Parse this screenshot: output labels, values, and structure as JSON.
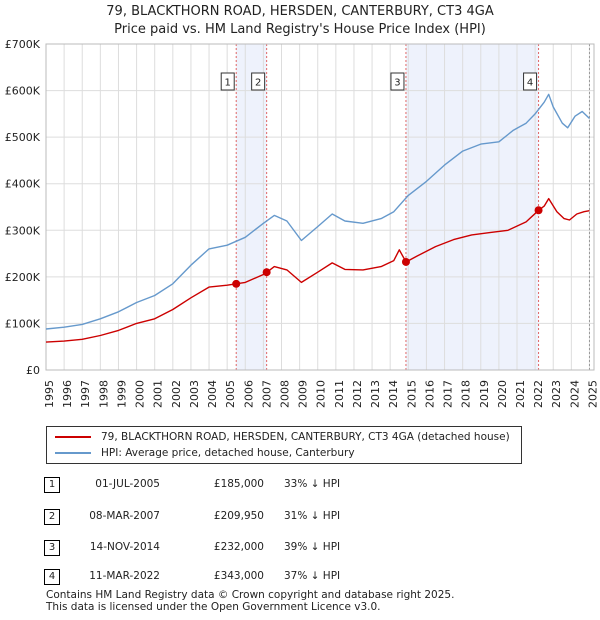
{
  "title": {
    "line1": "79, BLACKTHORN ROAD, HERSDEN, CANTERBURY, CT3 4GA",
    "line2": "Price paid vs. HM Land Registry's House Price Index (HPI)"
  },
  "colors": {
    "property": "#cc0000",
    "hpi": "#6699cc",
    "shade": "#eef2fc",
    "vline": "#e06666",
    "grid": "#dddddd"
  },
  "chart_data": {
    "type": "line",
    "title": "79, BLACKTHORN ROAD, HERSDEN, CANTERBURY, CT3 4GA — Price paid vs. HM Land Registry's House Price Index (HPI)",
    "xlabel": "",
    "ylabel": "",
    "xlim": [
      1995,
      2025.25
    ],
    "ylim": [
      0,
      700000
    ],
    "grid": true,
    "x_ticks": [
      1995,
      1996,
      1997,
      1998,
      1999,
      2000,
      2001,
      2002,
      2003,
      2004,
      2005,
      2006,
      2007,
      2008,
      2009,
      2010,
      2011,
      2012,
      2013,
      2014,
      2015,
      2016,
      2017,
      2018,
      2019,
      2020,
      2021,
      2022,
      2023,
      2024,
      2025
    ],
    "y_ticks": [
      {
        "value": 0,
        "label": "£0"
      },
      {
        "value": 100000,
        "label": "£100K"
      },
      {
        "value": 200000,
        "label": "£200K"
      },
      {
        "value": 300000,
        "label": "£300K"
      },
      {
        "value": 400000,
        "label": "£400K"
      },
      {
        "value": 500000,
        "label": "£500K"
      },
      {
        "value": 600000,
        "label": "£600K"
      },
      {
        "value": 700000,
        "label": "£700K"
      }
    ],
    "series": [
      {
        "name": "HPI: Average price, detached house, Canterbury",
        "color": "#6699cc",
        "points": [
          [
            1995,
            88000
          ],
          [
            1996,
            92000
          ],
          [
            1997,
            98000
          ],
          [
            1998,
            110000
          ],
          [
            1999,
            125000
          ],
          [
            2000,
            145000
          ],
          [
            2001,
            160000
          ],
          [
            2002,
            185000
          ],
          [
            2003,
            225000
          ],
          [
            2004,
            260000
          ],
          [
            2005,
            268000
          ],
          [
            2006,
            285000
          ],
          [
            2007,
            315000
          ],
          [
            2007.6,
            332000
          ],
          [
            2008.3,
            320000
          ],
          [
            2009.1,
            278000
          ],
          [
            2010,
            308000
          ],
          [
            2010.8,
            335000
          ],
          [
            2011.5,
            320000
          ],
          [
            2012.5,
            315000
          ],
          [
            2013.5,
            325000
          ],
          [
            2014.2,
            340000
          ],
          [
            2015,
            375000
          ],
          [
            2016,
            405000
          ],
          [
            2017,
            440000
          ],
          [
            2018,
            470000
          ],
          [
            2019,
            485000
          ],
          [
            2020,
            490000
          ],
          [
            2020.8,
            515000
          ],
          [
            2021.5,
            530000
          ],
          [
            2022,
            550000
          ],
          [
            2022.5,
            575000
          ],
          [
            2022.75,
            592000
          ],
          [
            2023,
            565000
          ],
          [
            2023.5,
            530000
          ],
          [
            2023.8,
            520000
          ],
          [
            2024.2,
            545000
          ],
          [
            2024.6,
            555000
          ],
          [
            2025,
            540000
          ]
        ]
      },
      {
        "name": "79, BLACKTHORN ROAD, HERSDEN, CANTERBURY, CT3 4GA (detached house)",
        "color": "#cc0000",
        "points": [
          [
            1995,
            60000
          ],
          [
            1996,
            62000
          ],
          [
            1997,
            66000
          ],
          [
            1998,
            74000
          ],
          [
            1999,
            85000
          ],
          [
            2000,
            100000
          ],
          [
            2001,
            110000
          ],
          [
            2002,
            130000
          ],
          [
            2003,
            155000
          ],
          [
            2004,
            178000
          ],
          [
            2005,
            182000
          ],
          [
            2005.5,
            185000
          ],
          [
            2006,
            188000
          ],
          [
            2007,
            205000
          ],
          [
            2007.2,
            209950
          ],
          [
            2007.6,
            222000
          ],
          [
            2008.3,
            215000
          ],
          [
            2009.1,
            188000
          ],
          [
            2010,
            210000
          ],
          [
            2010.8,
            230000
          ],
          [
            2011.5,
            216000
          ],
          [
            2012.5,
            215000
          ],
          [
            2013.5,
            222000
          ],
          [
            2014.2,
            235000
          ],
          [
            2014.5,
            258000
          ],
          [
            2014.87,
            232000
          ],
          [
            2015.5,
            245000
          ],
          [
            2016.5,
            265000
          ],
          [
            2017.5,
            280000
          ],
          [
            2018.5,
            290000
          ],
          [
            2019.5,
            295000
          ],
          [
            2020.5,
            300000
          ],
          [
            2021.5,
            318000
          ],
          [
            2022.19,
            343000
          ],
          [
            2022.5,
            352000
          ],
          [
            2022.75,
            368000
          ],
          [
            2023.2,
            340000
          ],
          [
            2023.6,
            325000
          ],
          [
            2023.9,
            322000
          ],
          [
            2024.3,
            335000
          ],
          [
            2024.7,
            340000
          ],
          [
            2025,
            342000
          ]
        ]
      }
    ],
    "annotations": [
      {
        "label": "1",
        "x": 2005.5,
        "y": 185000
      },
      {
        "label": "2",
        "x": 2007.18,
        "y": 209950
      },
      {
        "label": "3",
        "x": 2014.87,
        "y": 232000
      },
      {
        "label": "4",
        "x": 2022.19,
        "y": 343000
      }
    ],
    "shaded_ranges": [
      [
        2005.5,
        2007.18
      ],
      [
        2014.87,
        2022.19
      ]
    ]
  },
  "legend": {
    "property_label": "79, BLACKTHORN ROAD, HERSDEN, CANTERBURY, CT3 4GA (detached house)",
    "hpi_label": "HPI: Average price, detached house, Canterbury"
  },
  "transactions": [
    {
      "num": "1",
      "date": "01-JUL-2005",
      "price": "£185,000",
      "hpi": "33% ↓ HPI"
    },
    {
      "num": "2",
      "date": "08-MAR-2007",
      "price": "£209,950",
      "hpi": "31% ↓ HPI"
    },
    {
      "num": "3",
      "date": "14-NOV-2014",
      "price": "£232,000",
      "hpi": "39% ↓ HPI"
    },
    {
      "num": "4",
      "date": "11-MAR-2022",
      "price": "£343,000",
      "hpi": "37% ↓ HPI"
    }
  ],
  "footer": {
    "line1": "Contains HM Land Registry data © Crown copyright and database right 2025.",
    "line2": "This data is licensed under the Open Government Licence v3.0."
  }
}
